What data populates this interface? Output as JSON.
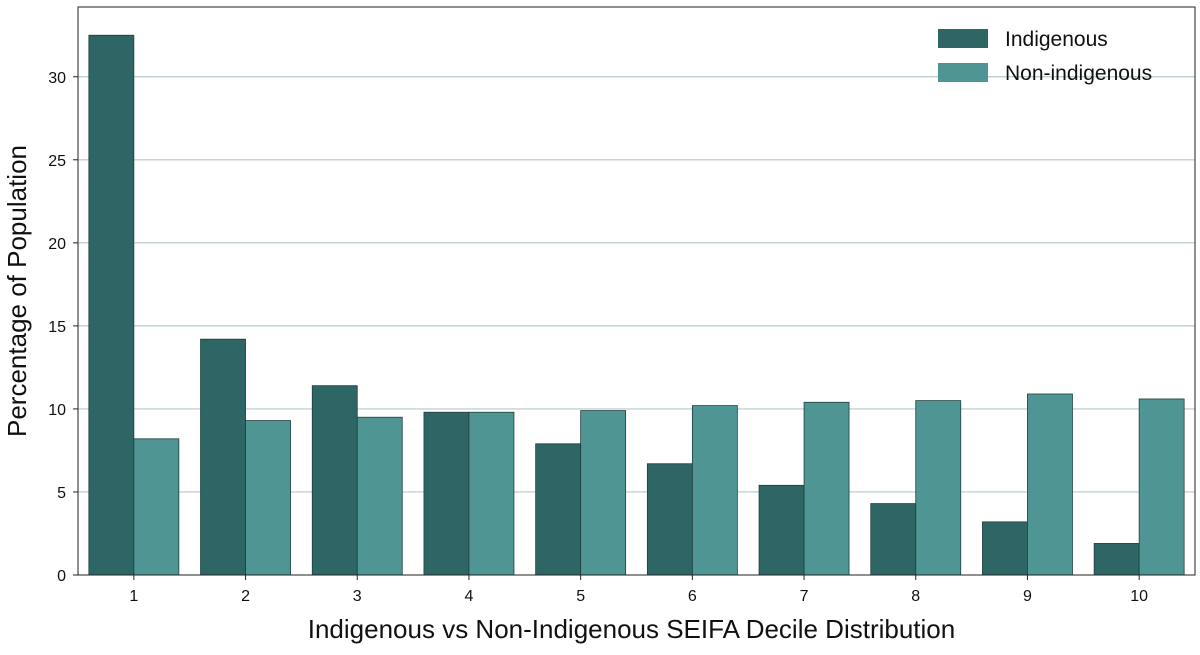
{
  "chart_data": {
    "type": "bar",
    "title": "",
    "xlabel": "Indigenous vs Non-Indigenous SEIFA Decile Distribution",
    "ylabel": "Percentage of Population",
    "categories": [
      "1",
      "2",
      "3",
      "4",
      "5",
      "6",
      "7",
      "8",
      "9",
      "10"
    ],
    "series": [
      {
        "name": "Indigenous",
        "color": "#2e6665",
        "values": [
          32.5,
          14.2,
          11.4,
          9.8,
          7.9,
          6.7,
          5.4,
          4.3,
          3.2,
          1.9
        ]
      },
      {
        "name": "Non-indigenous",
        "color": "#4f9594",
        "values": [
          8.2,
          9.3,
          9.5,
          9.8,
          9.9,
          10.2,
          10.4,
          10.5,
          10.9,
          10.6
        ]
      }
    ],
    "ylim": [
      0,
      34.2
    ],
    "yticks": [
      "0",
      "5",
      "10",
      "15",
      "20",
      "25",
      "30"
    ],
    "grid": "horizontal",
    "legend_position": "top-right"
  }
}
